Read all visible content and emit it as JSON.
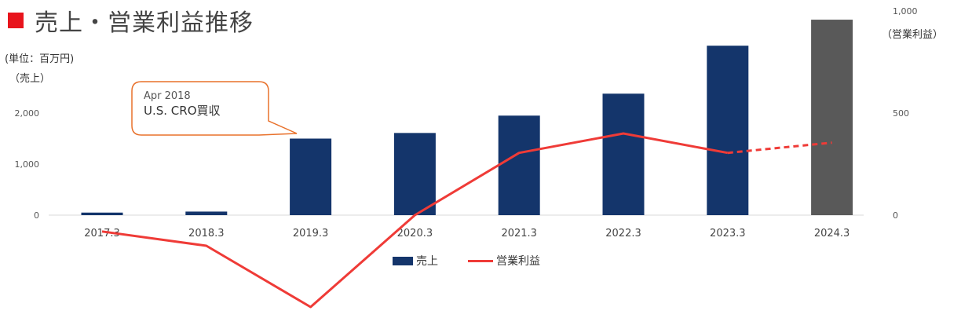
{
  "title": "売上・営業利益推移",
  "unit_label": "(単位：百万円)",
  "left_axis_label": "（売上）",
  "right_axis_label": "（営業利益）",
  "colors": {
    "accent": "#e8141c",
    "bar": "#14356b",
    "bar_forecast": "#595959",
    "line": "#ef3b37",
    "callout_border": "#e8702a"
  },
  "callout": {
    "line1": "Apr 2018",
    "line2": "U.S. CRO買収"
  },
  "legend": {
    "sales": "売上",
    "operating_profit": "営業利益"
  },
  "chart_data": {
    "type": "bar",
    "title": "売上・営業利益推移",
    "categories": [
      "2017.3",
      "2018.3",
      "2019.3",
      "2020.3",
      "2021.3",
      "2022.3",
      "2023.3",
      "2024.3"
    ],
    "series": [
      {
        "name": "売上",
        "axis": "left",
        "type": "bar",
        "values": [
          50,
          70,
          1500,
          1610,
          1950,
          2380,
          3320,
          3830
        ],
        "forecast_from_index": 7
      },
      {
        "name": "営業利益",
        "axis": "right",
        "type": "line",
        "values": [
          -80,
          -150,
          -450,
          0,
          305,
          400,
          305,
          355
        ],
        "forecast_from_index": 6
      }
    ],
    "left_axis": {
      "label": "（売上）",
      "ticks": [
        "0",
        "1,000",
        "2,000"
      ],
      "range": [
        0,
        4000
      ]
    },
    "right_axis": {
      "label": "（営業利益）",
      "ticks": [
        "0",
        "500",
        "1,000"
      ],
      "range": [
        0,
        1000
      ]
    },
    "unit": "(単位：百万円)",
    "grid": false,
    "legend_position": "bottom"
  }
}
